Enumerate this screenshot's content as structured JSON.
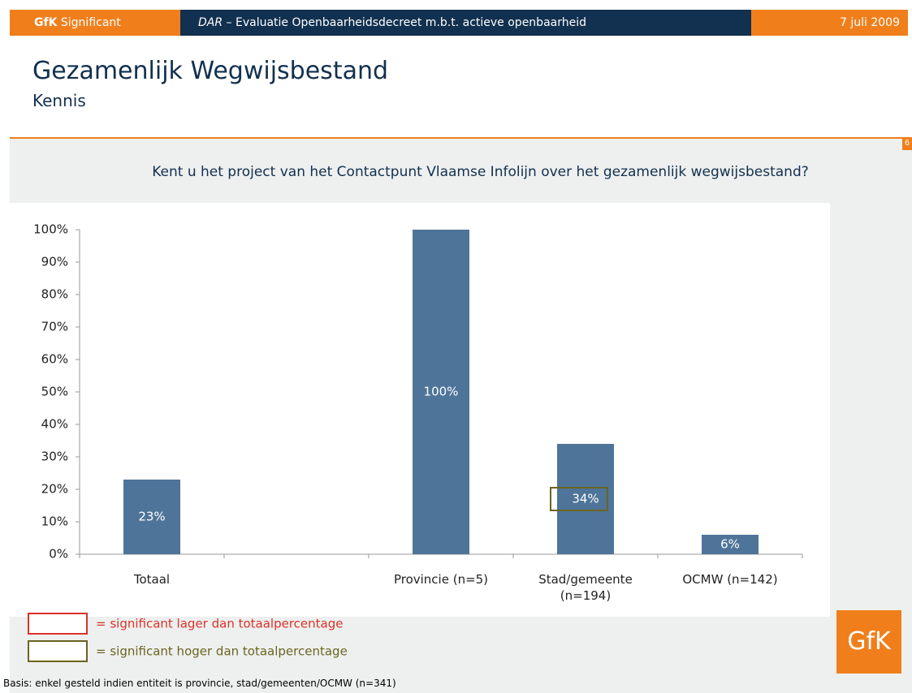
{
  "header": {
    "brand_bold": "GfK",
    "brand": "Significant",
    "project": "DAR",
    "project_title": "– Evaluatie Openbaarheidsdecreet m.b.t. actieve openbaarheid",
    "date": "7 juli 2009"
  },
  "slide": {
    "title": "Gezamenlijk Wegwijsbestand",
    "subtitle": "Kennis",
    "page_number": "6",
    "logo": "GfK"
  },
  "chart_data": {
    "type": "bar",
    "title": "Kent u het project van het Contactpunt Vlaamse Infolijn over het  gezamenlijk wegwijsbestand?",
    "categories": [
      "Totaal",
      null,
      "Provincie (n=5)",
      "Stad/gemeente (n=194)",
      "OCMW (n=142)"
    ],
    "values": [
      23,
      null,
      100,
      34,
      6
    ],
    "value_labels": [
      "23%",
      null,
      "100%",
      "34%",
      "6%"
    ],
    "color": "#4e7499",
    "ylim": [
      0,
      100
    ],
    "yticks": [
      {
        "value": 0,
        "label": "0%"
      },
      {
        "value": 10,
        "label": "10%"
      },
      {
        "value": 20,
        "label": "20%"
      },
      {
        "value": 30,
        "label": "30%"
      },
      {
        "value": 40,
        "label": "40%"
      },
      {
        "value": 50,
        "label": "50%"
      },
      {
        "value": 60,
        "label": "60%"
      },
      {
        "value": 70,
        "label": "70%"
      },
      {
        "value": 80,
        "label": "80%"
      },
      {
        "value": 90,
        "label": "90%"
      },
      {
        "value": 100,
        "label": "100%"
      }
    ],
    "significant_higher": [
      3
    ],
    "significant_lower": [],
    "legend": [
      {
        "label": "= significant lager dan totaalpercentage",
        "color": "#d9322a"
      },
      {
        "label": "= significant hoger dan totaalpercentage",
        "color": "#6b6420"
      }
    ],
    "footnote": "Basis: enkel gesteld indien entiteit is provincie, stad/gemeenten/OCMW (n=341)"
  }
}
